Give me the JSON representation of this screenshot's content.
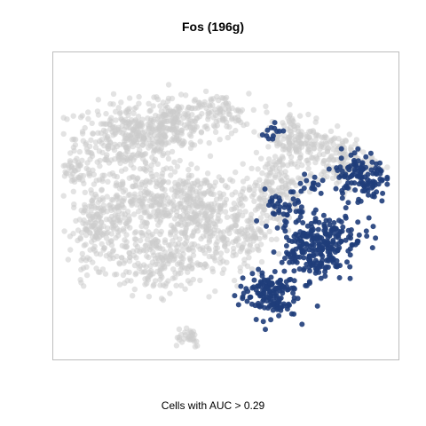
{
  "chart_data": {
    "type": "scatter",
    "title": "Fos (196g)",
    "caption": "Cells with AUC > 0.29",
    "xlabel": "",
    "ylabel": "",
    "axes_visible": false,
    "frame": true,
    "grid": false,
    "legend": "none",
    "colors": {
      "background_cells": "#cccccc",
      "highlighted_cells": "#1f3d7a",
      "frame": "#bdbdbd"
    },
    "series": [
      {
        "role": "all-cells",
        "clusters": [
          {
            "cx": 0.215,
            "cy": 0.73,
            "sx": 0.085,
            "sy": 0.06,
            "n": 360
          },
          {
            "cx": 0.35,
            "cy": 0.78,
            "sx": 0.05,
            "sy": 0.04,
            "n": 150
          },
          {
            "cx": 0.48,
            "cy": 0.81,
            "sx": 0.045,
            "sy": 0.035,
            "n": 90
          },
          {
            "cx": 0.27,
            "cy": 0.52,
            "sx": 0.09,
            "sy": 0.06,
            "n": 260
          },
          {
            "cx": 0.43,
            "cy": 0.47,
            "sx": 0.06,
            "sy": 0.07,
            "n": 230
          },
          {
            "cx": 0.12,
            "cy": 0.43,
            "sx": 0.045,
            "sy": 0.065,
            "n": 180
          },
          {
            "cx": 0.3,
            "cy": 0.32,
            "sx": 0.09,
            "sy": 0.06,
            "n": 250
          },
          {
            "cx": 0.55,
            "cy": 0.42,
            "sx": 0.04,
            "sy": 0.08,
            "n": 140
          },
          {
            "cx": 0.05,
            "cy": 0.62,
            "sx": 0.02,
            "sy": 0.03,
            "n": 40
          },
          {
            "cx": 0.38,
            "cy": 0.06,
            "sx": 0.025,
            "sy": 0.02,
            "n": 30
          },
          {
            "cx": 0.72,
            "cy": 0.72,
            "sx": 0.05,
            "sy": 0.05,
            "n": 160
          },
          {
            "cx": 0.65,
            "cy": 0.55,
            "sx": 0.04,
            "sy": 0.06,
            "n": 130
          },
          {
            "cx": 0.85,
            "cy": 0.65,
            "sx": 0.05,
            "sy": 0.045,
            "n": 150
          }
        ]
      },
      {
        "role": "auc-positive-cells",
        "clusters": [
          {
            "cx": 0.63,
            "cy": 0.2,
            "sx": 0.045,
            "sy": 0.04,
            "n": 150
          },
          {
            "cx": 0.77,
            "cy": 0.33,
            "sx": 0.045,
            "sy": 0.045,
            "n": 120
          },
          {
            "cx": 0.8,
            "cy": 0.4,
            "sx": 0.06,
            "sy": 0.035,
            "n": 140
          },
          {
            "cx": 0.91,
            "cy": 0.6,
            "sx": 0.04,
            "sy": 0.045,
            "n": 120
          },
          {
            "cx": 0.68,
            "cy": 0.48,
            "sx": 0.03,
            "sy": 0.035,
            "n": 40
          },
          {
            "cx": 0.64,
            "cy": 0.75,
            "sx": 0.015,
            "sy": 0.02,
            "n": 12
          },
          {
            "cx": 0.76,
            "cy": 0.57,
            "sx": 0.02,
            "sy": 0.02,
            "n": 15
          }
        ]
      }
    ]
  }
}
